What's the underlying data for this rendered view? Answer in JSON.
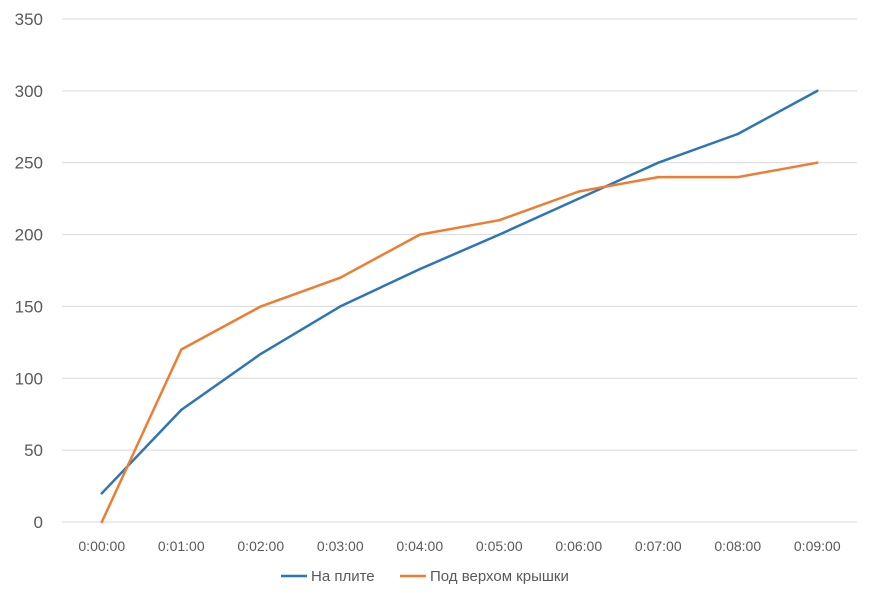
{
  "chart_data": {
    "type": "line",
    "categories": [
      "0:00:00",
      "0:01:00",
      "0:02:00",
      "0:03:00",
      "0:04:00",
      "0:05:00",
      "0:06:00",
      "0:07:00",
      "0:08:00",
      "0:09:00"
    ],
    "series": [
      {
        "name": "На плите",
        "color": "#2E75B6",
        "values": [
          20,
          78,
          117,
          150,
          176,
          200,
          225,
          250,
          270,
          300
        ]
      },
      {
        "name": "Под верхом крышки",
        "color": "#ED7D31",
        "values": [
          0,
          120,
          150,
          170,
          200,
          210,
          230,
          240,
          240,
          250
        ]
      }
    ],
    "y_ticks": [
      "0",
      "50",
      "100",
      "150",
      "200",
      "250",
      "300",
      "350"
    ],
    "ylim": [
      0,
      350
    ],
    "grid": true,
    "legend_position": "bottom",
    "title": "",
    "xlabel": "",
    "ylabel": ""
  }
}
